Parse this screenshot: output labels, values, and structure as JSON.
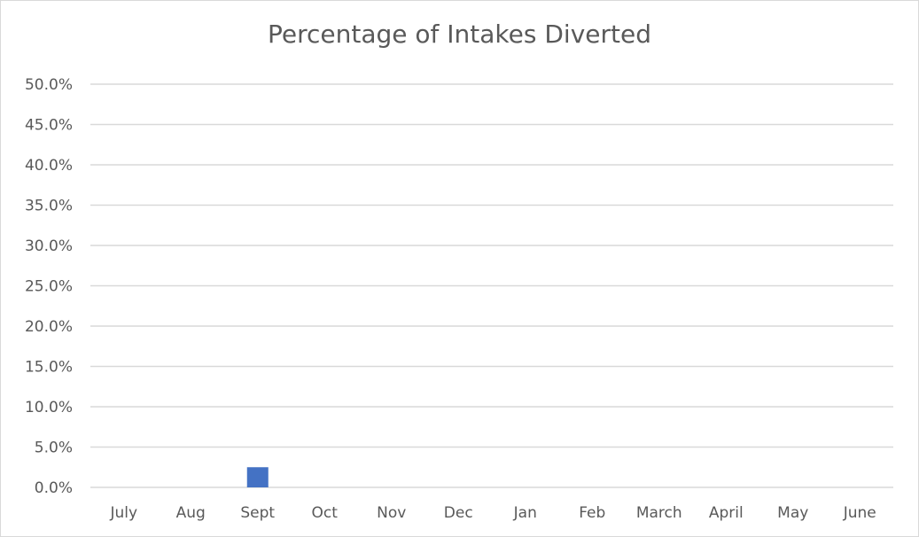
{
  "chart_data": {
    "type": "bar",
    "title": "Percentage of Intakes Diverted",
    "xlabel": "",
    "ylabel": "",
    "categories": [
      "July",
      "Aug",
      "Sept",
      "Oct",
      "Nov",
      "Dec",
      "Jan",
      "Feb",
      "March",
      "April",
      "May",
      "June"
    ],
    "values": [
      0.0,
      0.0,
      2.5,
      0.0,
      0.0,
      0.0,
      0.0,
      0.0,
      0.0,
      0.0,
      0.0,
      0.0
    ],
    "ylim": [
      0,
      50
    ],
    "ytick_labels": [
      "0.0%",
      "5.0%",
      "10.0%",
      "15.0%",
      "20.0%",
      "25.0%",
      "30.0%",
      "35.0%",
      "40.0%",
      "45.0%",
      "50.0%"
    ],
    "grid": true,
    "legend": "none",
    "colors": {
      "bar": "#4472c4",
      "grid": "#d9d9d9",
      "text": "#595959"
    }
  }
}
